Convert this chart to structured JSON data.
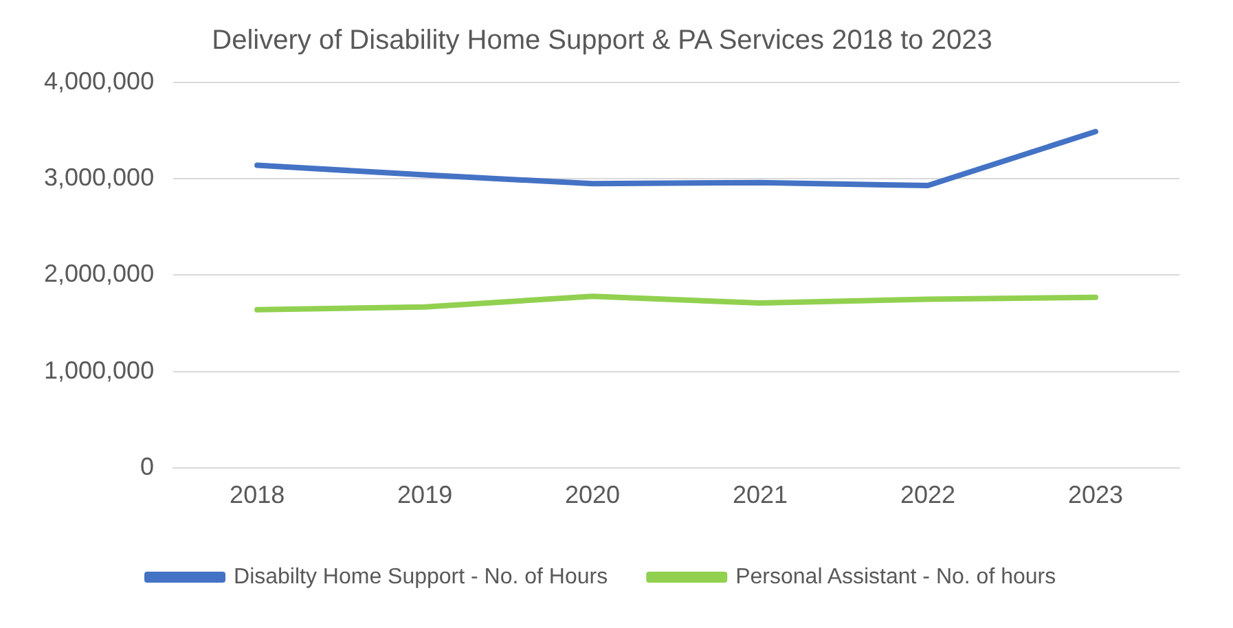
{
  "chart_data": {
    "type": "line",
    "title": "Delivery of Disability Home Support & PA Services 2018 to 2023",
    "categories": [
      "2018",
      "2019",
      "2020",
      "2021",
      "2022",
      "2023"
    ],
    "series": [
      {
        "name": "Disabilty Home Support - No. of Hours",
        "color": "#4472c4",
        "values": [
          3140000,
          3040000,
          2950000,
          2960000,
          2930000,
          3490000
        ]
      },
      {
        "name": "Personal Assistant - No. of hours",
        "color": "#92d050",
        "values": [
          1640000,
          1670000,
          1780000,
          1710000,
          1750000,
          1770000
        ]
      }
    ],
    "ylim": [
      0,
      4000000
    ],
    "yticks": [
      0,
      {
        "value": 1000000,
        "label": "1,000,000"
      },
      {
        "value": 2000000,
        "label": "2,000,000"
      },
      {
        "value": 3000000,
        "label": "3,000,000"
      },
      {
        "value": 4000000,
        "label": "4,000,000"
      }
    ],
    "grid": "y",
    "legend": "bottom",
    "marker": "none",
    "line_style": "solid"
  }
}
